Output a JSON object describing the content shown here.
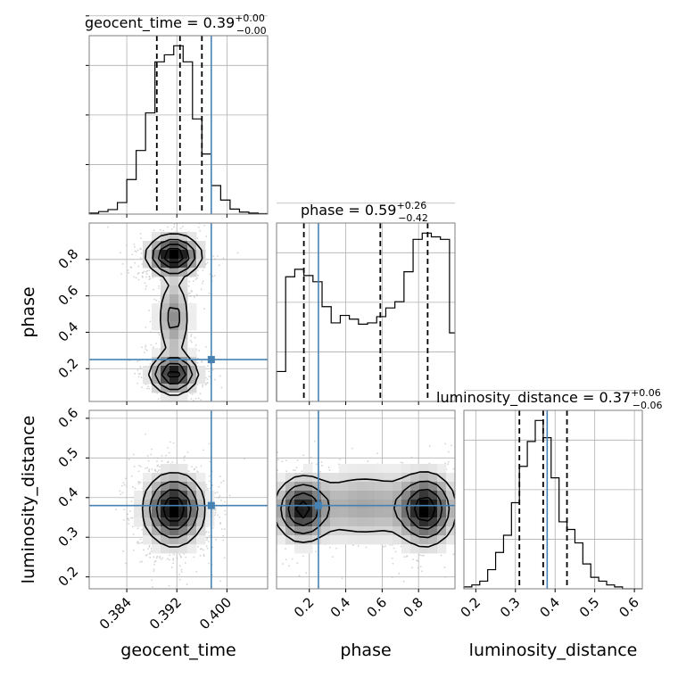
{
  "chart_data": {
    "type": "corner",
    "parameters": [
      "geocent_time",
      "phase",
      "luminosity_distance"
    ],
    "truth_color": "#4682b4",
    "truths": {
      "geocent_time": 0.3975,
      "phase": 0.25,
      "luminosity_distance": 0.38
    },
    "ranges": {
      "geocent_time": [
        0.378,
        0.4065
      ],
      "phase": [
        0.02,
        1.0
      ],
      "luminosity_distance": [
        0.17,
        0.62
      ]
    },
    "ticks": {
      "geocent_time": {
        "values": [
          0.384,
          0.392,
          0.4
        ],
        "labels": [
          "0.384",
          "0.392",
          "0.400"
        ]
      },
      "phase": {
        "values": [
          0.2,
          0.4,
          0.6,
          0.8
        ],
        "labels": [
          "0.2",
          "0.4",
          "0.6",
          "0.8"
        ]
      },
      "luminosity_distance": {
        "values": [
          0.2,
          0.3,
          0.4,
          0.5,
          0.6
        ],
        "labels": [
          "0.2",
          "0.3",
          "0.4",
          "0.5",
          "0.6"
        ]
      }
    },
    "marginals": [
      {
        "parameter": "geocent_time",
        "title_main": "geocent_time = 0.39",
        "title_plus": "+0.00",
        "title_minus": "−0.00",
        "quantiles": [
          0.3888,
          0.3925,
          0.396
        ],
        "bin_edges": [
          0.378,
          0.3795,
          0.381,
          0.3825,
          0.384,
          0.3855,
          0.387,
          0.3885,
          0.39,
          0.3915,
          0.393,
          0.3945,
          0.396,
          0.3975,
          0.399,
          0.4005,
          0.402,
          0.4035,
          0.405,
          0.4065
        ],
        "counts": [
          2,
          5,
          9,
          23,
          69,
          127,
          202,
          304,
          318,
          336,
          304,
          190,
          120,
          57,
          28,
          10,
          4,
          2,
          1
        ]
      },
      {
        "parameter": "phase",
        "title_main": "phase = 0.59",
        "title_plus": "+0.26",
        "title_minus": "−0.42",
        "quantiles": [
          0.17,
          0.59,
          0.85
        ],
        "bin_edges": [
          0.02,
          0.07,
          0.12,
          0.17,
          0.22,
          0.27,
          0.32,
          0.37,
          0.42,
          0.47,
          0.52,
          0.57,
          0.62,
          0.67,
          0.72,
          0.77,
          0.82,
          0.87,
          0.92,
          0.97,
          1.0
        ],
        "counts": [
          24,
          100,
          106,
          101,
          96,
          76,
          63,
          69,
          66,
          62,
          63,
          68,
          75,
          80,
          104,
          130,
          135,
          132,
          130,
          55
        ]
      },
      {
        "parameter": "luminosity_distance",
        "title_main": "luminosity_distance = 0.37",
        "title_plus": "+0.06",
        "title_minus": "−0.06",
        "quantiles": [
          0.31,
          0.37,
          0.43
        ],
        "bin_edges": [
          0.17,
          0.19,
          0.21,
          0.23,
          0.25,
          0.27,
          0.29,
          0.31,
          0.33,
          0.35,
          0.37,
          0.39,
          0.41,
          0.43,
          0.45,
          0.47,
          0.49,
          0.51,
          0.53,
          0.55,
          0.57,
          0.59,
          0.61,
          0.62
        ],
        "counts": [
          1,
          2,
          4,
          10,
          19,
          28,
          45,
          64,
          77,
          88,
          79,
          58,
          35,
          31,
          24,
          13,
          6,
          4,
          2,
          1,
          0,
          0,
          0
        ]
      }
    ],
    "joint_panels": [
      {
        "x": "geocent_time",
        "y": "phase",
        "modes": [
          {
            "x": 0.3915,
            "y": 0.82,
            "sx": 0.0021,
            "sy": 0.055,
            "weight": 1.0
          },
          {
            "x": 0.3915,
            "y": 0.17,
            "sx": 0.0019,
            "sy": 0.055,
            "weight": 0.85
          },
          {
            "x": 0.3915,
            "y": 0.48,
            "sx": 0.0014,
            "sy": 0.12,
            "weight": 0.35
          }
        ]
      },
      {
        "x": "geocent_time",
        "y": "luminosity_distance",
        "modes": [
          {
            "x": 0.3915,
            "y": 0.37,
            "sx": 0.0024,
            "sy": 0.045,
            "weight": 1.0
          }
        ]
      },
      {
        "x": "phase",
        "y": "luminosity_distance",
        "modes": [
          {
            "x": 0.16,
            "y": 0.37,
            "sx": 0.075,
            "sy": 0.04,
            "weight": 0.9
          },
          {
            "x": 0.84,
            "y": 0.37,
            "sx": 0.08,
            "sy": 0.045,
            "weight": 1.0
          },
          {
            "x": 0.5,
            "y": 0.38,
            "sx": 0.2,
            "sy": 0.05,
            "weight": 0.3
          }
        ]
      }
    ],
    "xlabels": [
      "geocent_time",
      "phase",
      "luminosity_distance"
    ],
    "ylabels": [
      "phase",
      "luminosity_distance"
    ]
  }
}
